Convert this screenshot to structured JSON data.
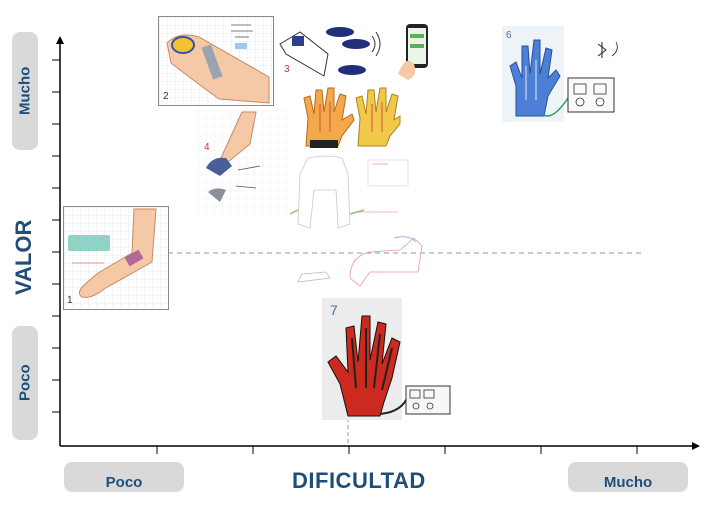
{
  "axes": {
    "x_title": "DIFICULTAD",
    "y_title": "VALOR",
    "x_low": "Poco",
    "x_high": "Mucho",
    "y_low": "Poco",
    "y_high": "Mucho",
    "title_color": "#1f4e79"
  },
  "cards": [
    {
      "number": "1",
      "label": "sensor"
    },
    {
      "number": "2",
      "label": ""
    },
    {
      "number": "3",
      "label": ""
    },
    {
      "number": "4",
      "label": ""
    },
    {
      "number": "6",
      "label": ""
    },
    {
      "number": "7",
      "label": ""
    }
  ]
}
